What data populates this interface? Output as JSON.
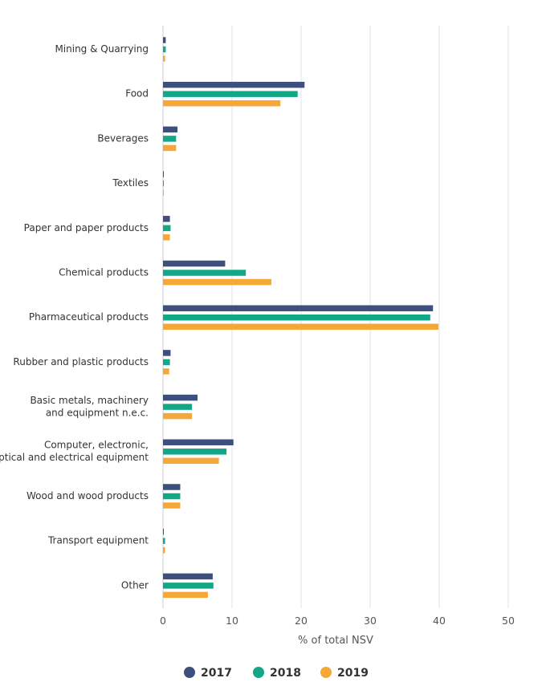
{
  "chart_data": {
    "type": "bar",
    "orientation": "horizontal",
    "categories": [
      "Mining & Quarrying",
      "Food",
      "Beverages",
      "Textiles",
      "Paper and paper products",
      "Chemical products",
      "Pharmaceutical products",
      "Rubber and plastic products",
      "Basic metals, machinery and equipment n.e.c.",
      "Computer, electronic, optical and electrical equipment",
      "Wood and wood products",
      "Transport equipment",
      "Other"
    ],
    "category_lines": [
      [
        "Mining & Quarrying"
      ],
      [
        "Food"
      ],
      [
        "Beverages"
      ],
      [
        "Textiles"
      ],
      [
        "Paper and paper products"
      ],
      [
        "Chemical products"
      ],
      [
        "Pharmaceutical products"
      ],
      [
        "Rubber and plastic products"
      ],
      [
        "Basic metals, machinery",
        "and equipment n.e.c."
      ],
      [
        "Computer, electronic,",
        "optical and electrical equipment"
      ],
      [
        "Wood and wood products"
      ],
      [
        "Transport equipment"
      ],
      [
        "Other"
      ]
    ],
    "series": [
      {
        "name": "2017",
        "color": "#3d4f7c",
        "values": [
          0.4,
          20.5,
          2.1,
          0.1,
          1.0,
          9.0,
          39.1,
          1.1,
          5.0,
          10.2,
          2.5,
          0.1,
          7.2
        ]
      },
      {
        "name": "2018",
        "color": "#12a887",
        "values": [
          0.4,
          19.5,
          1.9,
          0.1,
          1.1,
          12.0,
          38.7,
          1.0,
          4.2,
          9.2,
          2.5,
          0.3,
          7.3
        ]
      },
      {
        "name": "2019",
        "color": "#f5a838",
        "values": [
          0.3,
          17.0,
          1.9,
          0.1,
          1.0,
          15.7,
          39.9,
          0.9,
          4.2,
          8.1,
          2.5,
          0.3,
          6.5
        ]
      }
    ],
    "xlabel": "% of total NSV",
    "ylabel": "",
    "title": "",
    "xlim": [
      0,
      50
    ],
    "xticks": [
      0,
      10,
      20,
      30,
      40,
      50
    ],
    "grid": "vertical",
    "legend_position": "bottom"
  }
}
